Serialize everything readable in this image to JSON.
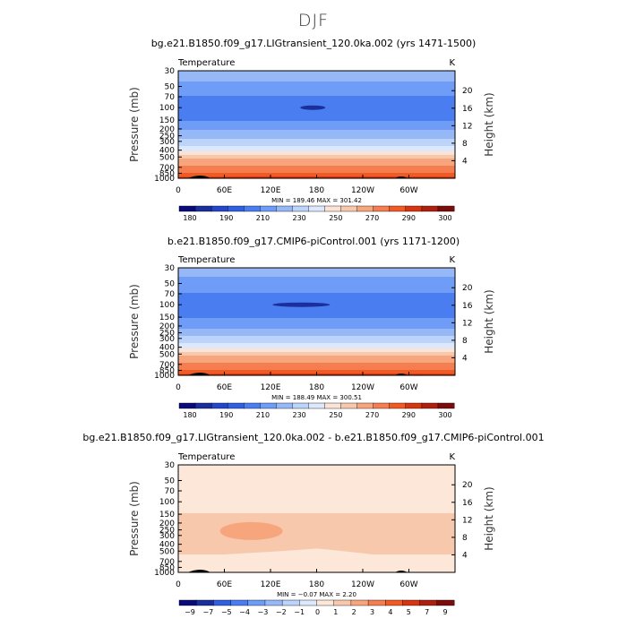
{
  "page": {
    "title": "DJF"
  },
  "colors": {
    "temp_levels": [
      "#0a0a78",
      "#1a2e9c",
      "#2347c8",
      "#2f60e0",
      "#4a7ef0",
      "#6e9cf6",
      "#96b8f6",
      "#bcd3fa",
      "#dde8fc",
      "#fbe4d6",
      "#f8c8ac",
      "#f7a57d",
      "#f57e50",
      "#ef5a25",
      "#d53510",
      "#ad2010",
      "#7a0c0c"
    ],
    "diff_levels": [
      "#0a0a78",
      "#1a2e9c",
      "#2f60e0",
      "#4a7ef0",
      "#6e9cf6",
      "#96b8f6",
      "#bcd3fa",
      "#dde8fc",
      "#fde7d8",
      "#f8c8ac",
      "#f7a57d",
      "#f57e50",
      "#ef5a25",
      "#d53510",
      "#ad2010",
      "#7a0c0c"
    ],
    "topography": "#000000"
  },
  "chart_data": [
    {
      "type": "heatmap",
      "title": "bg.e21.B1850.f09_g17.LIGtransient_120.0ka.002 (yrs 1471-1500)",
      "field": "Temperature",
      "units": "K",
      "ylabel": "Pressure  (mb)",
      "ylabel_right": "Height  (km)",
      "x_ticks": [
        "0",
        "60E",
        "120E",
        "180",
        "120W",
        "60W"
      ],
      "x_tick_lon": [
        0,
        60,
        120,
        180,
        240,
        300
      ],
      "p_ticks": [
        "30",
        "50",
        "70",
        "100",
        "150",
        "200",
        "250",
        "300",
        "400",
        "500",
        "700",
        "850",
        "1000"
      ],
      "p_tick_values": [
        30,
        50,
        70,
        100,
        150,
        200,
        250,
        300,
        400,
        500,
        700,
        850,
        1000
      ],
      "z_ticks": [
        "4",
        "8",
        "12",
        "16",
        "20"
      ],
      "z_tick_km": [
        4,
        8,
        12,
        16,
        20
      ],
      "stats": "MIN =  189.46   MAX =  301.42",
      "colorbar_labels": [
        "180",
        "190",
        "210",
        "230",
        "250",
        "270",
        "290",
        "300"
      ],
      "profile": [
        {
          "p": 30,
          "T": 225
        },
        {
          "p": 50,
          "T": 218
        },
        {
          "p": 70,
          "T": 210
        },
        {
          "p": 100,
          "T": 205
        },
        {
          "p": 150,
          "T": 210
        },
        {
          "p": 200,
          "T": 218
        },
        {
          "p": 250,
          "T": 226
        },
        {
          "p": 300,
          "T": 234
        },
        {
          "p": 400,
          "T": 248
        },
        {
          "p": 500,
          "T": 258
        },
        {
          "p": 700,
          "T": 272
        },
        {
          "p": 850,
          "T": 281
        },
        {
          "p": 1000,
          "T": 288
        }
      ]
    },
    {
      "type": "heatmap",
      "title": "b.e21.B1850.f09_g17.CMIP6-piControl.001 (yrs 1171-1200)",
      "field": "Temperature",
      "units": "K",
      "ylabel": "Pressure  (mb)",
      "ylabel_right": "Height  (km)",
      "x_ticks": [
        "0",
        "60E",
        "120E",
        "180",
        "120W",
        "60W"
      ],
      "x_tick_lon": [
        0,
        60,
        120,
        180,
        240,
        300
      ],
      "p_ticks": [
        "30",
        "50",
        "70",
        "100",
        "150",
        "200",
        "250",
        "300",
        "400",
        "500",
        "700",
        "850",
        "1000"
      ],
      "p_tick_values": [
        30,
        50,
        70,
        100,
        150,
        200,
        250,
        300,
        400,
        500,
        700,
        850,
        1000
      ],
      "z_ticks": [
        "4",
        "8",
        "12",
        "16",
        "20"
      ],
      "z_tick_km": [
        4,
        8,
        12,
        16,
        20
      ],
      "stats": "MIN =  188.49   MAX =  300.51",
      "colorbar_labels": [
        "180",
        "190",
        "210",
        "230",
        "250",
        "270",
        "290",
        "300"
      ],
      "profile": [
        {
          "p": 30,
          "T": 224
        },
        {
          "p": 50,
          "T": 217
        },
        {
          "p": 70,
          "T": 209
        },
        {
          "p": 100,
          "T": 204
        },
        {
          "p": 150,
          "T": 209
        },
        {
          "p": 200,
          "T": 217
        },
        {
          "p": 250,
          "T": 225
        },
        {
          "p": 300,
          "T": 233
        },
        {
          "p": 400,
          "T": 247
        },
        {
          "p": 500,
          "T": 257
        },
        {
          "p": 700,
          "T": 271
        },
        {
          "p": 850,
          "T": 280
        },
        {
          "p": 1000,
          "T": 287
        }
      ]
    },
    {
      "type": "heatmap",
      "title": "bg.e21.B1850.f09_g17.LIGtransient_120.0ka.002 - b.e21.B1850.f09_g17.CMIP6-piControl.001",
      "field": "Temperature",
      "units": "K",
      "ylabel": "Pressure  (mb)",
      "ylabel_right": "Height  (km)",
      "x_ticks": [
        "0",
        "60E",
        "120E",
        "180",
        "120W",
        "60W"
      ],
      "x_tick_lon": [
        0,
        60,
        120,
        180,
        240,
        300
      ],
      "p_ticks": [
        "30",
        "50",
        "70",
        "100",
        "150",
        "200",
        "250",
        "300",
        "400",
        "500",
        "700",
        "850",
        "1000"
      ],
      "p_tick_values": [
        30,
        50,
        70,
        100,
        150,
        200,
        250,
        300,
        400,
        500,
        700,
        850,
        1000
      ],
      "z_ticks": [
        "4",
        "8",
        "12",
        "16",
        "20"
      ],
      "z_tick_km": [
        4,
        8,
        12,
        16,
        20
      ],
      "stats": "MIN =  −0.07   MAX =   2.20",
      "colorbar_labels": [
        "−9",
        "−7",
        "−5",
        "−4",
        "−3",
        "−2",
        "−1",
        "0",
        "1",
        "2",
        "3",
        "4",
        "5",
        "7",
        "9"
      ],
      "profile": [
        {
          "p": 30,
          "dT": 0.5
        },
        {
          "p": 100,
          "dT": 0.6
        },
        {
          "p": 200,
          "dT": 1.3
        },
        {
          "p": 300,
          "dT": 1.6
        },
        {
          "p": 500,
          "dT": 1.1
        },
        {
          "p": 700,
          "dT": 0.8
        },
        {
          "p": 1000,
          "dT": 0.9
        }
      ]
    }
  ]
}
